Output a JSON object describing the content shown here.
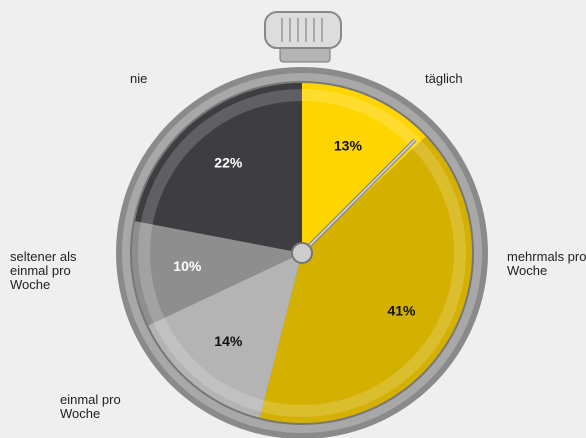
{
  "chart_data": {
    "type": "pie",
    "categories": [
      "täglich",
      "mehrmals pro Woche",
      "einmal pro Woche",
      "seltener als einmal pro Woche",
      "nie"
    ],
    "values": [
      13,
      41,
      14,
      10,
      22
    ],
    "value_labels": [
      "13%",
      "41%",
      "14%",
      "10%",
      "22%"
    ],
    "colors": [
      "#ffd500",
      "#d4b000",
      "#b4b4b4",
      "#8e8e8e",
      "#3e3e42"
    ]
  }
}
